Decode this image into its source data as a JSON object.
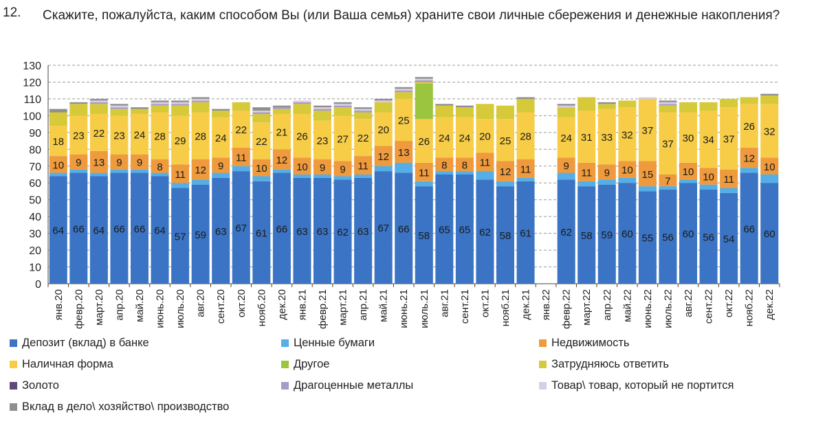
{
  "question": {
    "number": "12.",
    "text": "Скажите, пожалуйста, каким способом Вы (или Ваша семья) храните свои личные сбережения и денежные накопления?"
  },
  "colors": {
    "deposit": "#3b74c4",
    "securities": "#55aee5",
    "realty": "#ee9a3d",
    "cash": "#f7cd47",
    "other": "#9cc53f",
    "hard": "#d6c93a",
    "gold": "#5b4a7a",
    "metals": "#a99bc8",
    "goods": "#d9cfe4",
    "business": "#8f8f8f"
  },
  "chart_data": {
    "type": "bar",
    "stacked": true,
    "ylim": [
      0,
      130
    ],
    "yticks": [
      0,
      10,
      20,
      30,
      40,
      50,
      60,
      70,
      80,
      90,
      100,
      110,
      120,
      130
    ],
    "grid": "horizontal dashed",
    "legend_position": "bottom",
    "categories": [
      "янв.20",
      "февр.20",
      "март.20",
      "апр.20",
      "май.20",
      "июнь.20",
      "июль.20",
      "авг.20",
      "сент.20",
      "окт.20",
      "нояб.20",
      "дек.20",
      "янв.21",
      "февр.21",
      "март.21",
      "апр.21",
      "май.21",
      "июнь.21",
      "июль.21",
      "авг.21",
      "сент.21",
      "окт.21",
      "нояб.21",
      "дек.21",
      "янв.22",
      "февр.22",
      "март.22",
      "апр.22",
      "май.22",
      "июнь.22",
      "июль.22",
      "авг.22",
      "сент.22",
      "окт.22",
      "нояб.22",
      "дек.22"
    ],
    "series": [
      {
        "name": "Депозит (вклад) в банке",
        "key": "deposit",
        "labeled": true,
        "values": [
          64,
          66,
          64,
          66,
          66,
          64,
          57,
          59,
          63,
          67,
          61,
          66,
          63,
          63,
          62,
          63,
          67,
          66,
          58,
          65,
          65,
          62,
          58,
          61,
          null,
          62,
          58,
          59,
          60,
          55,
          56,
          60,
          56,
          54,
          66,
          60
        ]
      },
      {
        "name": "Ценные бумаги",
        "key": "securities",
        "labeled": false,
        "values": [
          2,
          2,
          2,
          2,
          2,
          2,
          3,
          3,
          3,
          3,
          3,
          2,
          2,
          2,
          2,
          2,
          3,
          6,
          3,
          2,
          2,
          5,
          3,
          2,
          null,
          4,
          3,
          3,
          3,
          3,
          2,
          2,
          3,
          3,
          3,
          5
        ]
      },
      {
        "name": "Недвижимость",
        "key": "realty",
        "labeled": true,
        "values": [
          10,
          9,
          13,
          9,
          9,
          8,
          11,
          12,
          9,
          11,
          10,
          12,
          10,
          9,
          9,
          11,
          12,
          13,
          11,
          8,
          8,
          11,
          12,
          11,
          null,
          9,
          11,
          9,
          10,
          15,
          7,
          10,
          10,
          11,
          12,
          10
        ]
      },
      {
        "name": "Наличная форма",
        "key": "cash",
        "labeled": true,
        "values": [
          18,
          23,
          22,
          23,
          24,
          28,
          29,
          28,
          24,
          22,
          22,
          21,
          26,
          23,
          27,
          22,
          20,
          25,
          26,
          24,
          24,
          20,
          25,
          28,
          null,
          24,
          31,
          33,
          32,
          37,
          37,
          30,
          34,
          37,
          26,
          32
        ]
      },
      {
        "name": "Другое",
        "key": "other",
        "labeled": false,
        "values": [
          0,
          0,
          0,
          0,
          0,
          0,
          0,
          0,
          0,
          0,
          0,
          0,
          0,
          0,
          0,
          0,
          0,
          0,
          21,
          0,
          0,
          0,
          0,
          0,
          null,
          0,
          0,
          0,
          0,
          0,
          0,
          0,
          0,
          0,
          0,
          0
        ]
      },
      {
        "name": "Затрудняюсь ответить",
        "key": "hard",
        "labeled": false,
        "values": [
          8,
          7,
          6,
          4,
          3,
          4,
          6,
          6,
          4,
          5,
          5,
          3,
          6,
          6,
          5,
          4,
          6,
          4,
          1,
          7,
          6,
          9,
          8,
          8,
          null,
          6,
          8,
          3,
          4,
          0,
          4,
          6,
          5,
          5,
          4,
          5
        ]
      },
      {
        "name": "Золото",
        "key": "gold",
        "labeled": false,
        "values": [
          0,
          0,
          0,
          0,
          0,
          0,
          0,
          0,
          0,
          0,
          0,
          0,
          0,
          0,
          0,
          0,
          0,
          0,
          0,
          0,
          0,
          0,
          0,
          0,
          null,
          0,
          0,
          0,
          0,
          0,
          0,
          0,
          0,
          0,
          0,
          0
        ]
      },
      {
        "name": "Драгоценные металлы",
        "key": "metals",
        "labeled": false,
        "values": [
          0,
          0,
          1,
          1,
          0,
          1,
          1,
          1,
          0,
          0,
          1,
          1,
          1,
          1,
          1,
          1,
          0,
          1,
          1,
          0,
          0,
          0,
          0,
          0,
          null,
          0,
          0,
          0,
          0,
          0,
          1,
          0,
          0,
          0,
          0,
          0
        ]
      },
      {
        "name": "Товар\\ товар, который не портится",
        "key": "goods",
        "labeled": false,
        "values": [
          0,
          0,
          1,
          1,
          0,
          1,
          1,
          1,
          0,
          0,
          1,
          0,
          1,
          1,
          1,
          1,
          1,
          1,
          1,
          0,
          0,
          0,
          0,
          0,
          null,
          1,
          0,
          0,
          0,
          1,
          1,
          0,
          0,
          0,
          0,
          0
        ]
      },
      {
        "name": "Вклад в дело\\ хозяйство\\ производство",
        "key": "business",
        "labeled": false,
        "values": [
          2,
          1,
          1,
          1,
          1,
          1,
          1,
          1,
          1,
          0,
          2,
          1,
          0,
          1,
          1,
          1,
          1,
          1,
          1,
          1,
          1,
          0,
          0,
          1,
          null,
          1,
          0,
          1,
          0,
          0,
          1,
          0,
          0,
          0,
          0,
          1
        ]
      }
    ]
  },
  "legend": [
    {
      "label": "Депозит (вклад) в банке",
      "key": "deposit"
    },
    {
      "label": "Ценные бумаги",
      "key": "securities"
    },
    {
      "label": "Недвижимость",
      "key": "realty"
    },
    {
      "label": "Наличная форма",
      "key": "cash"
    },
    {
      "label": "Другое",
      "key": "other"
    },
    {
      "label": "Затрудняюсь ответить",
      "key": "hard"
    },
    {
      "label": "Золото",
      "key": "gold"
    },
    {
      "label": "Драгоценные металлы",
      "key": "metals"
    },
    {
      "label": "Товар\\ товар, который не портится",
      "key": "goods"
    },
    {
      "label": "Вклад в дело\\ хозяйство\\ производство",
      "key": "business"
    }
  ]
}
